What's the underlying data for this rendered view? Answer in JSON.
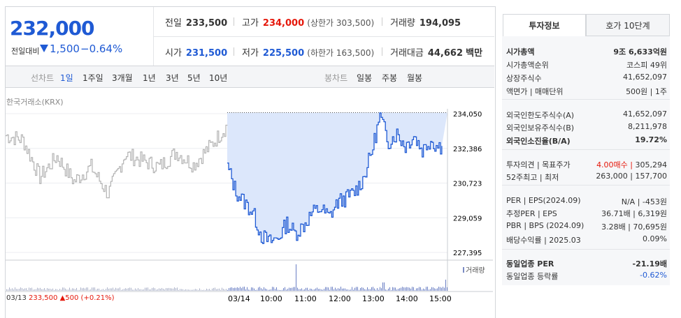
{
  "quote": {
    "current_price": "232,000",
    "change_label": "전일대비",
    "change_value": "1,500",
    "change_rate": "−0.64%",
    "prev_close_label": "전일",
    "prev_close": "233,500",
    "high_label": "고가",
    "high": "234,000",
    "upper_limit": "(상한가 303,500)",
    "volume_label": "거래량",
    "volume": "194,095",
    "open_label": "시가",
    "open": "231,500",
    "low_label": "저가",
    "low": "225,500",
    "lower_limit": "(하한가 163,500)",
    "trade_value_label": "거래대금",
    "trade_value": "44,662",
    "trade_value_unit": "백만"
  },
  "chart_tabs": {
    "line_label": "선차트",
    "line_items": [
      "1일",
      "1주일",
      "3개월",
      "1년",
      "3년",
      "5년",
      "10년"
    ],
    "selected": "1일",
    "candle_label": "봉차트",
    "candle_items": [
      "일봉",
      "주봉",
      "월봉"
    ]
  },
  "exchange": "한국거래소(KRX)",
  "volume_legend": "거래량",
  "footer": {
    "prev_date": "03/13",
    "prev_price": "233,500",
    "prev_change": "500",
    "prev_rate": "(+0.21%)"
  },
  "chart_data": {
    "type": "line",
    "title": "",
    "y_ticks": [
      "234,050",
      "232,386",
      "230,723",
      "229,059",
      "227,395"
    ],
    "ylim": [
      227395,
      234050
    ],
    "x_ticks": [
      "03/14",
      "10:00",
      "11:00",
      "12:00",
      "13:00",
      "14:00",
      "15:00"
    ],
    "series": [
      {
        "name": "03/13",
        "x": [
          "09:00",
          "09:30",
          "10:00",
          "10:30",
          "11:00",
          "11:30",
          "12:00",
          "12:30",
          "13:00",
          "13:30",
          "14:00",
          "14:30",
          "15:00",
          "15:30"
        ],
        "values": [
          233000,
          232800,
          231000,
          232000,
          230800,
          231500,
          230200,
          232100,
          231800,
          231500,
          232200,
          231600,
          232500,
          233500
        ]
      },
      {
        "name": "03/14",
        "x": [
          "09:00",
          "09:15",
          "09:30",
          "09:45",
          "10:00",
          "10:15",
          "10:30",
          "10:45",
          "11:00",
          "11:15",
          "11:30",
          "11:45",
          "12:00",
          "12:15",
          "12:30",
          "12:45",
          "13:00",
          "13:15",
          "13:30",
          "13:45",
          "14:00",
          "14:15",
          "14:30",
          "14:45",
          "15:00",
          "15:10",
          "15:20"
        ],
        "values": [
          231500,
          230300,
          229800,
          229300,
          228200,
          227900,
          228100,
          228800,
          228300,
          228700,
          229300,
          229500,
          229100,
          229800,
          230000,
          230300,
          230900,
          232200,
          233900,
          232700,
          233100,
          232500,
          233000,
          232300,
          232800,
          232500,
          232500
        ]
      }
    ],
    "prev_close_reference": 233500
  },
  "right_panel": {
    "tabs": [
      "투자정보",
      "호가 10단계"
    ],
    "selected_tab": "투자정보",
    "rows": [
      {
        "label": "시가총액",
        "value": "9조 6,633억원",
        "bold": true
      },
      {
        "label": "시가총액순위",
        "value": "코스피 49위"
      },
      {
        "label": "상장주식수",
        "value": "41,652,097"
      },
      {
        "label": "액면가 | 매매단위",
        "value": "500원 | 1주"
      },
      {
        "label": "외국인한도주식수(A)",
        "value": "41,652,097"
      },
      {
        "label": "외국인보유주식수(B)",
        "value": "8,211,978"
      },
      {
        "label": "외국인소진율(B/A)",
        "value": "19.72%",
        "bold": true
      },
      {
        "label": "투자의견 | 목표주가",
        "value_red": "4.00매수",
        "value": "305,294"
      },
      {
        "label": "52주최고 | 최저",
        "value": "263,000 | 157,700"
      },
      {
        "label": "PER | EPS(2024.09)",
        "value": "N/A | -453원"
      },
      {
        "label": "추정PER | EPS",
        "value": "36.71배 | 6,319원"
      },
      {
        "label": "PBR | BPS (2024.09)",
        "value": "3.28배 | 70,695원"
      },
      {
        "label": "배당수익률 | 2025.03",
        "value": "0.09%"
      },
      {
        "label": "동일업종 PER",
        "value": "-21.19배",
        "bold": true
      },
      {
        "label": "동일업종 등락률",
        "value": "-0.62%",
        "blue": true
      }
    ]
  }
}
